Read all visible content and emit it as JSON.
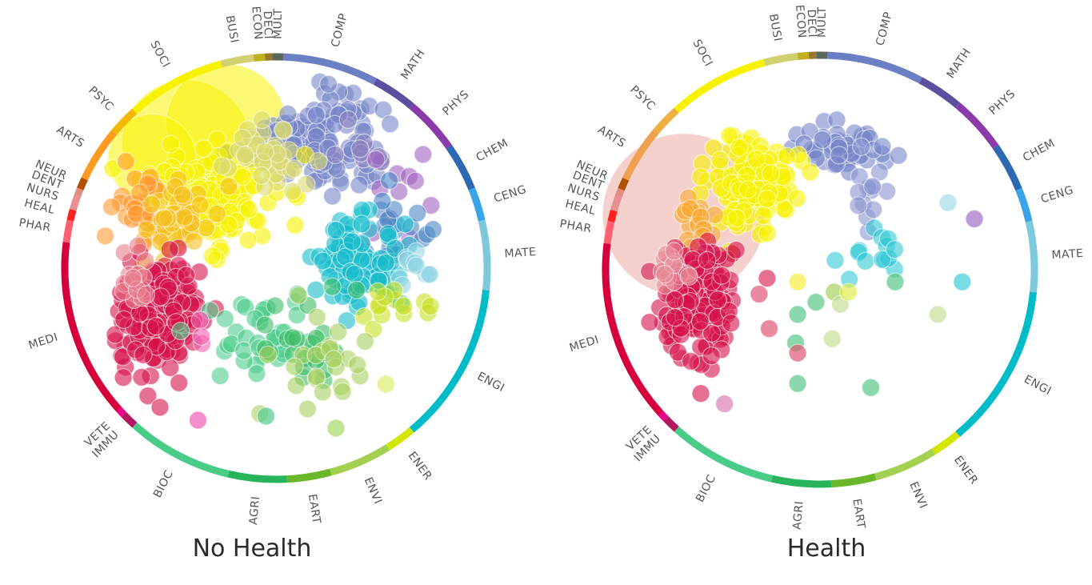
{
  "chart_data": [
    {
      "type": "scatter",
      "subtype": "radial-bubble",
      "title": "No Health",
      "segments": [
        {
          "code": "COMP",
          "color": "#6b7fc4",
          "start": 2,
          "end": 28
        },
        {
          "code": "MATH",
          "color": "#5c4fa0",
          "start": 28,
          "end": 40
        },
        {
          "code": "PHYS",
          "color": "#8a3aaa",
          "start": 40,
          "end": 55
        },
        {
          "code": "CHEM",
          "color": "#2d68b3",
          "start": 55,
          "end": 68
        },
        {
          "code": "CENG",
          "color": "#3aa4e6",
          "start": 68,
          "end": 77
        },
        {
          "code": "MATE",
          "color": "#7ec8dc",
          "start": 77,
          "end": 96
        },
        {
          "code": "ENGI",
          "color": "#00bcc8",
          "start": 96,
          "end": 140
        },
        {
          "code": "ENER",
          "color": "#d4e600",
          "start": 140,
          "end": 148
        },
        {
          "code": "ENVI",
          "color": "#a3d050",
          "start": 148,
          "end": 165
        },
        {
          "code": "EART",
          "color": "#6ab82a",
          "start": 165,
          "end": 177
        },
        {
          "code": "AGRI",
          "color": "#28b45a",
          "start": 177,
          "end": 193
        },
        {
          "code": "BIOC",
          "color": "#48cc88",
          "start": 193,
          "end": 222
        },
        {
          "code": "IMMU",
          "color": "#b3175f",
          "start": 222,
          "end": 226
        },
        {
          "code": "VETE",
          "color": "#e8008a",
          "start": 226,
          "end": 228
        },
        {
          "code": "MEDI",
          "color": "#d5003c",
          "start": 228,
          "end": 277
        },
        {
          "code": "PHAR",
          "color": "#ff6070",
          "start": 277,
          "end": 283
        },
        {
          "code": "HEAL",
          "color": "#ff2020",
          "start": 283,
          "end": 286
        },
        {
          "code": "NURS",
          "color": "#e89090",
          "start": 286,
          "end": 290
        },
        {
          "code": "DENT",
          "color": "#e58a80",
          "start": 290,
          "end": 292
        },
        {
          "code": "NEUR",
          "color": "#b05000",
          "start": 292,
          "end": 295
        },
        {
          "code": "ARTS",
          "color": "#ff9a20",
          "start": 295,
          "end": 310
        },
        {
          "code": "PSYC",
          "color": "#f5b800",
          "start": 310,
          "end": 318
        },
        {
          "code": "SOCI",
          "color": "#f7f200",
          "start": 318,
          "end": 345
        },
        {
          "code": "BUSI",
          "color": "#d0d070",
          "start": 345,
          "end": 354
        },
        {
          "code": "ECON",
          "color": "#c0b020",
          "start": 354,
          "end": 357
        },
        {
          "code": "DECI",
          "color": "#9a7a2a",
          "start": 357,
          "end": 359
        },
        {
          "code": "MULT",
          "color": "#5a6a5a",
          "start": 359,
          "end": 362
        }
      ],
      "big_bubbles": [
        {
          "field": "SOCI",
          "x": -0.45,
          "y": -0.62,
          "r": 0.32,
          "color": "#f7f200"
        },
        {
          "field": "SOCI",
          "x": -0.25,
          "y": -0.72,
          "r": 0.3,
          "color": "#f7f200"
        },
        {
          "field": "PSYC",
          "x": -0.62,
          "y": -0.55,
          "r": 0.22,
          "color": "#f7f200"
        }
      ],
      "clusters": [
        {
          "field": "COMP",
          "color": "#7785c8",
          "cx": 0.22,
          "cy": -0.62,
          "sx": 0.18,
          "sy": 0.16,
          "n": 130
        },
        {
          "field": "MATH",
          "color": "#8a80c0",
          "cx": 0.45,
          "cy": -0.6,
          "sx": 0.1,
          "sy": 0.1,
          "n": 10
        },
        {
          "field": "PHYS",
          "color": "#a060c0",
          "cx": 0.6,
          "cy": -0.35,
          "sx": 0.13,
          "sy": 0.15,
          "n": 12
        },
        {
          "field": "CHEM",
          "color": "#4a86c4",
          "cx": 0.55,
          "cy": -0.15,
          "sx": 0.15,
          "sy": 0.15,
          "n": 25
        },
        {
          "field": "ENGI",
          "color": "#18bccc",
          "cx": 0.42,
          "cy": -0.05,
          "sx": 0.16,
          "sy": 0.14,
          "n": 90
        },
        {
          "field": "MATE",
          "color": "#8fd3e2",
          "cx": 0.72,
          "cy": 0.0,
          "sx": 0.08,
          "sy": 0.1,
          "n": 12
        },
        {
          "field": "ENER",
          "color": "#c8e020",
          "cx": 0.6,
          "cy": 0.22,
          "sx": 0.1,
          "sy": 0.09,
          "n": 14
        },
        {
          "field": "SOCI",
          "color": "#f7f200",
          "cx": -0.35,
          "cy": -0.35,
          "sx": 0.22,
          "sy": 0.16,
          "n": 170
        },
        {
          "field": "BUSI",
          "color": "#d8d870",
          "cx": -0.05,
          "cy": -0.55,
          "sx": 0.14,
          "sy": 0.13,
          "n": 40
        },
        {
          "field": "ARTS",
          "color": "#ff9a30",
          "cx": -0.68,
          "cy": -0.3,
          "sx": 0.08,
          "sy": 0.14,
          "n": 30
        },
        {
          "field": "PSYC",
          "color": "#f5c020",
          "cx": -0.5,
          "cy": -0.22,
          "sx": 0.12,
          "sy": 0.12,
          "n": 40
        },
        {
          "field": "MEDI",
          "color": "#d5104a",
          "cx": -0.58,
          "cy": 0.22,
          "sx": 0.14,
          "sy": 0.2,
          "n": 200
        },
        {
          "field": "NURS",
          "color": "#e87e8e",
          "cx": -0.72,
          "cy": 0.02,
          "sx": 0.06,
          "sy": 0.1,
          "n": 14
        },
        {
          "field": "BIOC",
          "color": "#4ccc8c",
          "cx": -0.05,
          "cy": 0.35,
          "sx": 0.18,
          "sy": 0.15,
          "n": 40
        },
        {
          "field": "AGRI",
          "color": "#3cbc68",
          "cx": 0.15,
          "cy": 0.35,
          "sx": 0.15,
          "sy": 0.16,
          "n": 25
        },
        {
          "field": "ENVI",
          "color": "#a8d060",
          "cx": 0.25,
          "cy": 0.45,
          "sx": 0.14,
          "sy": 0.14,
          "n": 25
        },
        {
          "field": "VETE",
          "color": "#f060b0",
          "cx": -0.38,
          "cy": 0.3,
          "sx": 0.06,
          "sy": 0.12,
          "n": 3
        }
      ],
      "outliers": [
        {
          "field": "VETE",
          "x": -0.39,
          "y": 0.76,
          "color": "#f060b8"
        },
        {
          "field": "ENER",
          "x": 0.55,
          "y": 0.58,
          "color": "#e0ee70"
        },
        {
          "field": "BIOC",
          "x": -0.05,
          "y": 0.74,
          "color": "#55cc90"
        },
        {
          "field": "ENVI",
          "x": 0.3,
          "y": 0.8,
          "color": "#a8d868"
        }
      ]
    },
    {
      "type": "scatter",
      "subtype": "radial-bubble",
      "title": "Health",
      "segments": [
        {
          "code": "COMP",
          "color": "#6b7fc4",
          "start": 2,
          "end": 28
        },
        {
          "code": "MATH",
          "color": "#5c4fa0",
          "start": 28,
          "end": 40
        },
        {
          "code": "PHYS",
          "color": "#8a3aaa",
          "start": 40,
          "end": 55
        },
        {
          "code": "CHEM",
          "color": "#2d68b3",
          "start": 55,
          "end": 68
        },
        {
          "code": "CENG",
          "color": "#3aa4e6",
          "start": 68,
          "end": 77
        },
        {
          "code": "MATE",
          "color": "#7ec8dc",
          "start": 77,
          "end": 96
        },
        {
          "code": "ENGI",
          "color": "#00bcc8",
          "start": 96,
          "end": 140
        },
        {
          "code": "ENER",
          "color": "#d4e600",
          "start": 140,
          "end": 148
        },
        {
          "code": "ENVI",
          "color": "#a3d050",
          "start": 148,
          "end": 165
        },
        {
          "code": "EART",
          "color": "#6ab82a",
          "start": 165,
          "end": 177
        },
        {
          "code": "AGRI",
          "color": "#28b45a",
          "start": 177,
          "end": 193
        },
        {
          "code": "BIOC",
          "color": "#48cc88",
          "start": 193,
          "end": 222
        },
        {
          "code": "IMMU",
          "color": "#b3175f",
          "start": 222,
          "end": 226
        },
        {
          "code": "VETE",
          "color": "#e8008a",
          "start": 226,
          "end": 228
        },
        {
          "code": "MEDI",
          "color": "#d5003c",
          "start": 228,
          "end": 277
        },
        {
          "code": "PHAR",
          "color": "#ff6070",
          "start": 277,
          "end": 283
        },
        {
          "code": "HEAL",
          "color": "#ff2020",
          "start": 283,
          "end": 286
        },
        {
          "code": "NURS",
          "color": "#e89090",
          "start": 286,
          "end": 290
        },
        {
          "code": "DENT",
          "color": "#e58a80",
          "start": 290,
          "end": 292
        },
        {
          "code": "NEUR",
          "color": "#b05000",
          "start": 292,
          "end": 295
        },
        {
          "code": "ARTS",
          "color": "#f0a050",
          "start": 295,
          "end": 310
        },
        {
          "code": "PSYC",
          "color": "#eeb040",
          "start": 310,
          "end": 318
        },
        {
          "code": "SOCI",
          "color": "#f7f200",
          "start": 318,
          "end": 345
        },
        {
          "code": "BUSI",
          "color": "#d0d070",
          "start": 345,
          "end": 354
        },
        {
          "code": "ECON",
          "color": "#c0b020",
          "start": 354,
          "end": 357
        },
        {
          "code": "DECI",
          "color": "#9a7a2a",
          "start": 357,
          "end": 359
        },
        {
          "code": "MULT",
          "color": "#5a6a5a",
          "start": 359,
          "end": 362
        }
      ],
      "big_bubbles": [
        {
          "field": "NURS",
          "x": -0.67,
          "y": -0.27,
          "r": 0.4,
          "color": "#e89a90"
        }
      ],
      "clusters": [
        {
          "field": "COMP",
          "color": "#7785c8",
          "cx": 0.1,
          "cy": -0.58,
          "sx": 0.14,
          "sy": 0.09,
          "n": 55
        },
        {
          "field": "COMP",
          "color": "#8a94d0",
          "cx": 0.25,
          "cy": -0.35,
          "sx": 0.08,
          "sy": 0.12,
          "n": 14
        },
        {
          "field": "CHEM",
          "color": "#30c8d4",
          "cx": 0.25,
          "cy": -0.08,
          "sx": 0.1,
          "sy": 0.1,
          "n": 14
        },
        {
          "field": "SOCI",
          "color": "#f7f200",
          "cx": -0.33,
          "cy": -0.43,
          "sx": 0.16,
          "sy": 0.14,
          "n": 130
        },
        {
          "field": "ARTS",
          "color": "#f8a830",
          "cx": -0.58,
          "cy": -0.25,
          "sx": 0.07,
          "sy": 0.1,
          "n": 20
        },
        {
          "field": "MEDI",
          "color": "#d5104a",
          "cx": -0.6,
          "cy": 0.15,
          "sx": 0.12,
          "sy": 0.18,
          "n": 170
        },
        {
          "field": "NURS",
          "color": "#e88c98",
          "cx": -0.72,
          "cy": 0.0,
          "sx": 0.05,
          "sy": 0.08,
          "n": 14
        }
      ],
      "outliers": [
        {
          "field": "MATE",
          "x": 0.63,
          "y": -0.33,
          "color": "#a8dce8"
        },
        {
          "field": "PHYS",
          "x": 0.76,
          "y": -0.25,
          "color": "#a070c8"
        },
        {
          "field": "ENGI",
          "x": 0.7,
          "y": 0.06,
          "color": "#40d0d8"
        },
        {
          "field": "AGRI",
          "x": 0.37,
          "y": 0.06,
          "color": "#58c888"
        },
        {
          "field": "ENVI",
          "x": 0.58,
          "y": 0.22,
          "color": "#c8e098"
        },
        {
          "field": "SOCI",
          "x": -0.11,
          "y": 0.06,
          "color": "#f7f040"
        },
        {
          "field": "BIOC",
          "x": -0.11,
          "y": 0.22,
          "color": "#58c888"
        },
        {
          "field": "BIOC",
          "x": -0.02,
          "y": 0.16,
          "color": "#58c888"
        },
        {
          "field": "BIOC",
          "x": -0.12,
          "y": 0.36,
          "color": "#58c888"
        },
        {
          "field": "BIOC",
          "x": -0.11,
          "y": 0.56,
          "color": "#58c888"
        },
        {
          "field": "AGRI",
          "x": 0.25,
          "y": 0.58,
          "color": "#58c888"
        },
        {
          "field": "ENVI",
          "x": 0.07,
          "y": 0.11,
          "color": "#a8d060"
        },
        {
          "field": "ENVI",
          "x": 0.1,
          "y": 0.17,
          "color": "#c8e098"
        },
        {
          "field": "ENVI",
          "x": 0.06,
          "y": 0.34,
          "color": "#c8e098"
        },
        {
          "field": "ENER",
          "x": 0.14,
          "y": 0.11,
          "color": "#e0ee50"
        },
        {
          "field": "MEDI",
          "x": -0.3,
          "y": 0.12,
          "color": "#e05878"
        },
        {
          "field": "MEDI",
          "x": -0.25,
          "y": 0.29,
          "color": "#e05878"
        },
        {
          "field": "MEDI",
          "x": -0.11,
          "y": 0.41,
          "color": "#e05878"
        },
        {
          "field": "VETE",
          "x": -0.47,
          "y": 0.66,
          "color": "#d880b8"
        }
      ]
    }
  ],
  "panels": {
    "left_title": "No Health",
    "right_title": "Health"
  }
}
